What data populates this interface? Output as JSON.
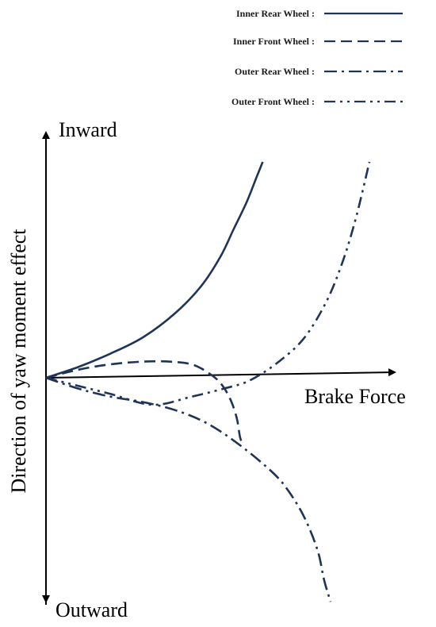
{
  "chart_data": {
    "type": "line",
    "xlabel": "Brake Force",
    "ylabel": "Direction of yaw moment effect",
    "y_positive_label": "Inward",
    "y_negative_label": "Outward",
    "xlim": [
      0,
      1
    ],
    "ylim": [
      -1,
      1
    ],
    "grid": false,
    "legend_position": "top-right",
    "series": [
      {
        "name": "Inner Rear Wheel :",
        "style": "solid",
        "x": [
          0.0,
          0.1,
          0.2,
          0.3,
          0.4,
          0.48,
          0.54,
          0.58,
          0.62,
          0.65,
          0.67
        ],
        "y": [
          0.0,
          0.04,
          0.09,
          0.15,
          0.24,
          0.34,
          0.45,
          0.55,
          0.65,
          0.74,
          0.8
        ]
      },
      {
        "name": "Inner Front Wheel :",
        "style": "dashed",
        "x": [
          0.0,
          0.1,
          0.2,
          0.3,
          0.38,
          0.45,
          0.5,
          0.54,
          0.57,
          0.59,
          0.6,
          0.61
        ],
        "y": [
          0.0,
          0.03,
          0.05,
          0.06,
          0.06,
          0.05,
          0.02,
          -0.02,
          -0.08,
          -0.15,
          -0.22,
          -0.25
        ]
      },
      {
        "name": "Outer Rear Wheel :",
        "style": "dashdot",
        "x": [
          0.0,
          0.1,
          0.2,
          0.3,
          0.4,
          0.5,
          0.6,
          0.7,
          0.75,
          0.8,
          0.84,
          0.86,
          0.88
        ],
        "y": [
          0.0,
          -0.04,
          -0.07,
          -0.09,
          -0.12,
          -0.17,
          -0.25,
          -0.35,
          -0.42,
          -0.52,
          -0.64,
          -0.75,
          -0.83
        ]
      },
      {
        "name": "Outer Front Wheel :",
        "style": "dashdotdot",
        "x": [
          0.0,
          0.1,
          0.2,
          0.33,
          0.45,
          0.55,
          0.63,
          0.72,
          0.8,
          0.87,
          0.92,
          0.96,
          1.0
        ],
        "y": [
          0.0,
          -0.03,
          -0.06,
          -0.1,
          -0.07,
          -0.04,
          -0.01,
          0.06,
          0.15,
          0.29,
          0.44,
          0.6,
          0.8
        ]
      }
    ],
    "colors": {
      "line": "#1f3456",
      "axis": "#000000"
    }
  }
}
